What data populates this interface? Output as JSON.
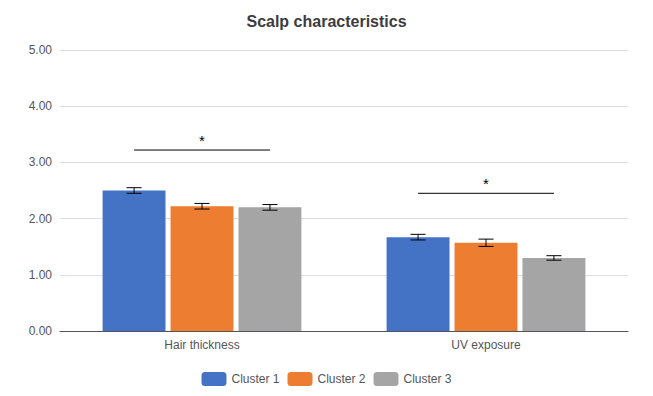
{
  "chart_data": {
    "type": "bar",
    "title": "Scalp characteristics",
    "categories": [
      "Hair thickness",
      "UV exposure"
    ],
    "series": [
      {
        "name": "Cluster 1",
        "color": "#4472C4",
        "values": [
          2.5,
          1.67
        ],
        "errors": [
          0.05,
          0.05
        ]
      },
      {
        "name": "Cluster 2",
        "color": "#ED7D31",
        "values": [
          2.22,
          1.57
        ],
        "errors": [
          0.05,
          0.065
        ]
      },
      {
        "name": "Cluster 3",
        "color": "#A5A5A5",
        "values": [
          2.2,
          1.3
        ],
        "errors": [
          0.05,
          0.04
        ]
      }
    ],
    "ylim": [
      0,
      5.0
    ],
    "yticks": [
      {
        "value": 0.0,
        "label": "0.00"
      },
      {
        "value": 1.0,
        "label": "1.00"
      },
      {
        "value": 2.0,
        "label": "2.00"
      },
      {
        "value": 3.0,
        "label": "3.00"
      },
      {
        "value": 4.0,
        "label": "4.00"
      },
      {
        "value": 5.0,
        "label": "5.00"
      }
    ],
    "annotations": [
      {
        "text": "*",
        "category": "Hair thickness",
        "y": 3.22,
        "from": "Cluster 1",
        "to": "Cluster 3"
      },
      {
        "text": "*",
        "category": "UV exposure",
        "y": 2.45,
        "from": "Cluster 1",
        "to": "Cluster 3"
      }
    ],
    "grid": true,
    "legend": "bottom"
  }
}
